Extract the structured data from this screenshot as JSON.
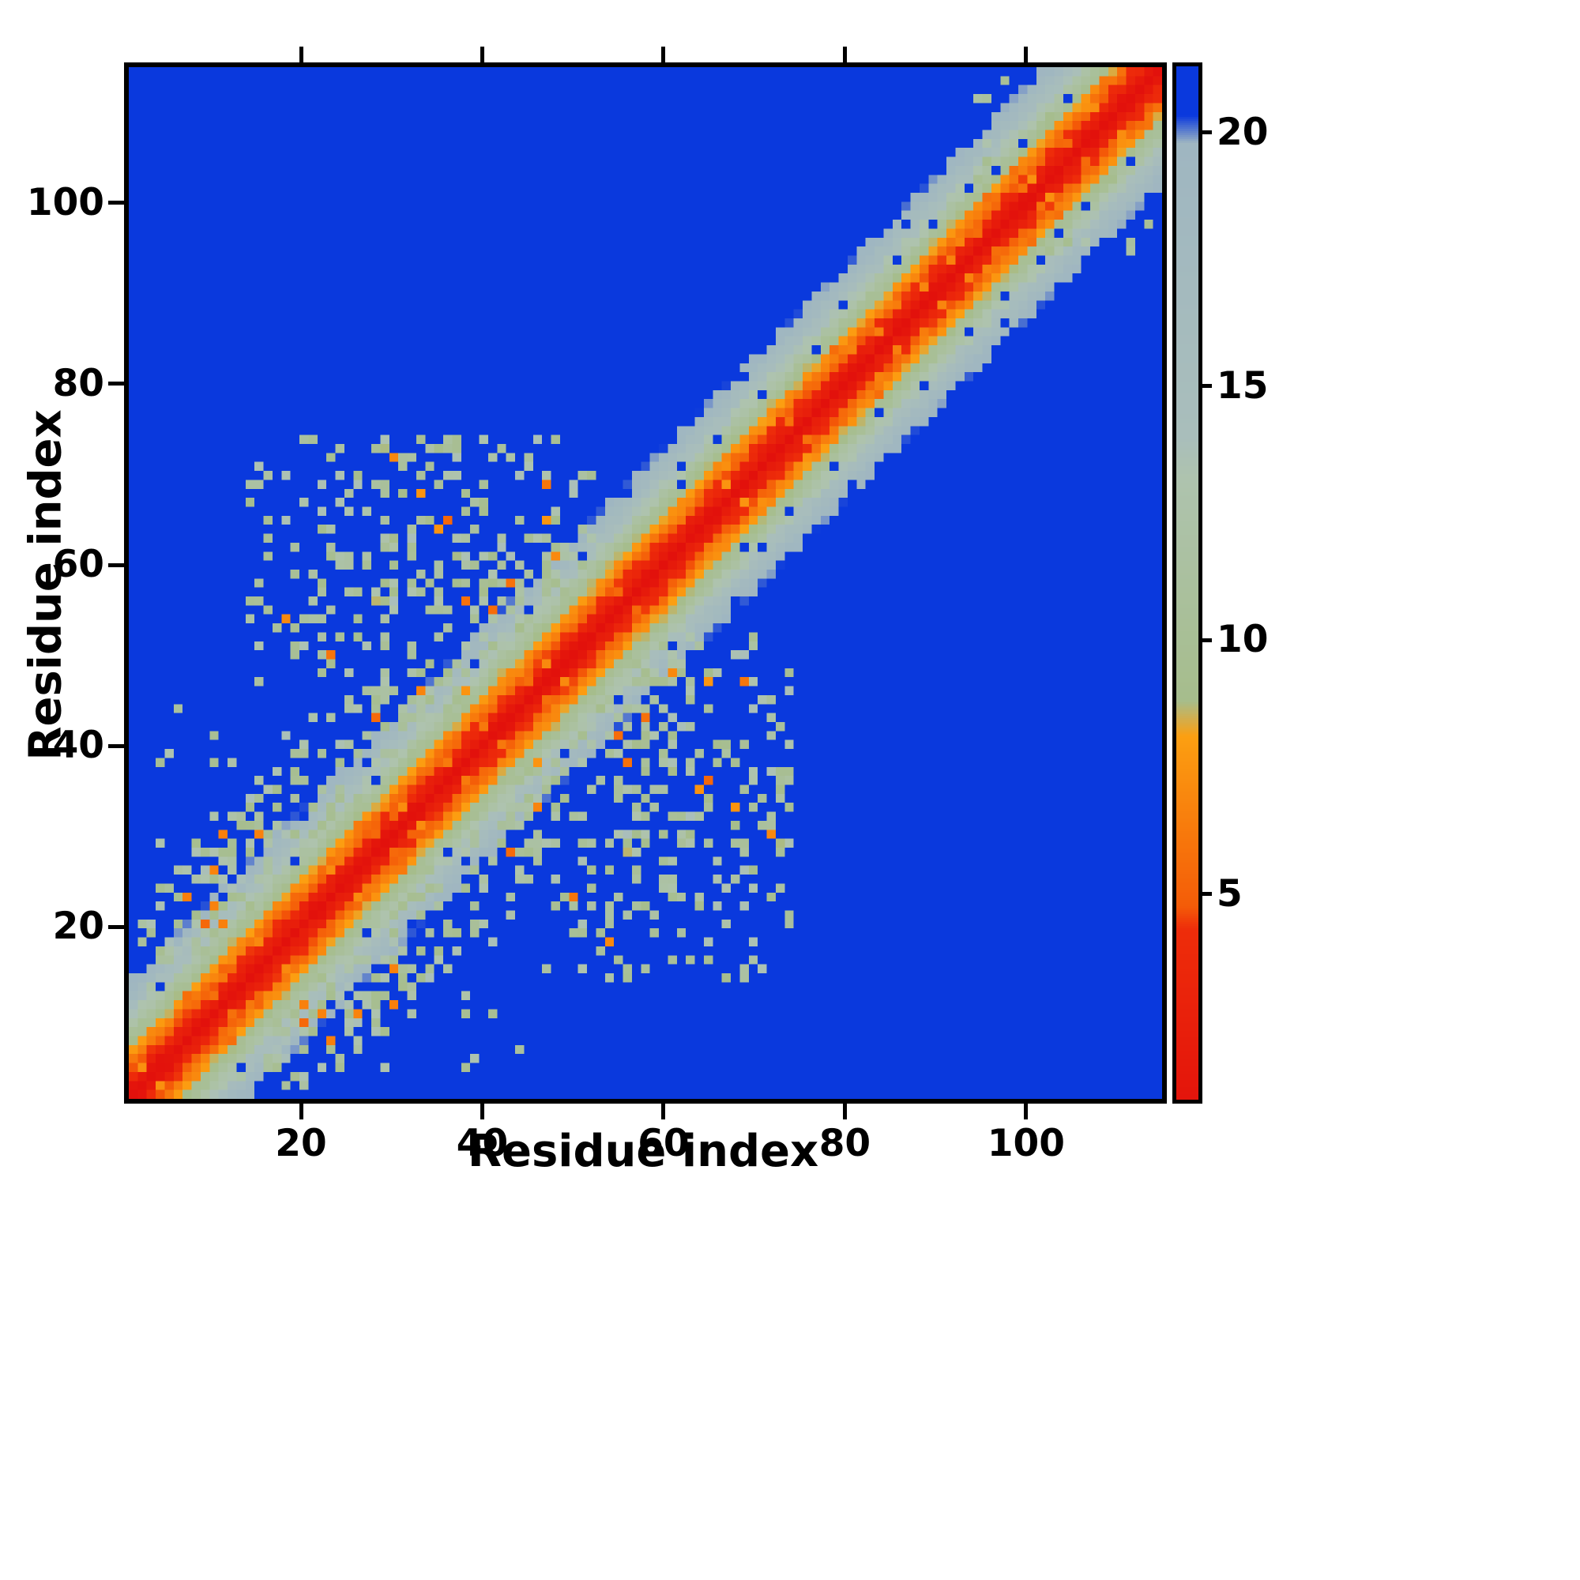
{
  "chart_data": {
    "type": "heatmap",
    "title": "",
    "xlabel": "Residue index",
    "ylabel": "Residue index",
    "x_range": [
      1,
      115
    ],
    "y_range": [
      1,
      115
    ],
    "x_ticks": [
      20,
      40,
      60,
      80,
      100
    ],
    "y_ticks": [
      20,
      40,
      60,
      80,
      100
    ],
    "grid": false,
    "legend_position": "colorbar-right",
    "colorbar": {
      "ticks": [
        5,
        10,
        15,
        20
      ],
      "vmin": 0.95,
      "vmax": 21.3
    },
    "colors": {
      "background_blue": "#0a39dd",
      "core_red": "#e10e0c",
      "mid_orange": "#fc9f11",
      "sage_green": "#a6bd8c",
      "gray_blue": "#9fb6c1",
      "axes_black": "#000000",
      "page_white": "#ffffff"
    },
    "colormap_anchors": [
      [
        0.0,
        "#e10e0c"
      ],
      [
        4.3,
        "#ee2d0a"
      ],
      [
        4.75,
        "#f45c08"
      ],
      [
        8.1,
        "#fc9f11"
      ],
      [
        8.8,
        "#a6bd8c"
      ],
      [
        13.2,
        "#aec3ae"
      ],
      [
        14.0,
        "#a9bebb"
      ],
      [
        19.8,
        "#9fb6c1"
      ],
      [
        20.35,
        "#0a39dd"
      ],
      [
        22.5,
        "#0a39dd"
      ]
    ],
    "generator": {
      "n": 115,
      "seed": 7,
      "background_value": 22.0,
      "band": {
        "slope": 1.55,
        "noise": 1.6,
        "max_sep": 13,
        "speckle_min_sep": 2,
        "speckle_max_sep": 5,
        "speckle_prob": 0.13,
        "speckle_value": [
          5.0,
          7.6
        ],
        "hole_min_sep": 7,
        "hole_max_sep": 13,
        "hole_prob": 0.045
      },
      "clusters": [
        {
          "x": [
            2,
            48
          ],
          "y": [
            2,
            48
          ],
          "min_sep": 7,
          "max_sep": 20,
          "density": 0.17,
          "value": [
            9,
            14
          ],
          "orange_prob": 0.04
        },
        {
          "x": [
            4,
            30
          ],
          "y": [
            24,
            46
          ],
          "min_sep": 14,
          "max_sep": 44,
          "density": 0.05,
          "value": [
            9,
            14
          ],
          "orange_prob": 0.0
        },
        {
          "x": [
            27,
            52
          ],
          "y": [
            54,
            74
          ],
          "min_sep": 0,
          "max_sep": 80,
          "density": 0.2,
          "value": [
            8.6,
            14
          ],
          "orange_prob": 0.05
        },
        {
          "x": [
            15,
            27
          ],
          "y": [
            47,
            67
          ],
          "min_sep": 0,
          "max_sep": 80,
          "density": 0.09,
          "value": [
            9,
            14
          ],
          "orange_prob": 0.03
        },
        {
          "x": [
            48,
            74
          ],
          "y": [
            14,
            40
          ],
          "min_sep": 0,
          "max_sep": 80,
          "density": 0.11,
          "value": [
            9,
            14
          ],
          "orange_prob": 0.04
        },
        {
          "x": [
            38,
            58
          ],
          "y": [
            38,
            62
          ],
          "min_sep": 6,
          "max_sep": 22,
          "density": 0.13,
          "value": [
            8.6,
            13.5
          ],
          "orange_prob": 0.06
        },
        {
          "x": [
            95,
            112
          ],
          "y": [
            99,
            114
          ],
          "min_sep": 5,
          "max_sep": 80,
          "density": 0.05,
          "value": [
            9,
            13.5
          ],
          "orange_prob": 0.05
        }
      ]
    }
  }
}
